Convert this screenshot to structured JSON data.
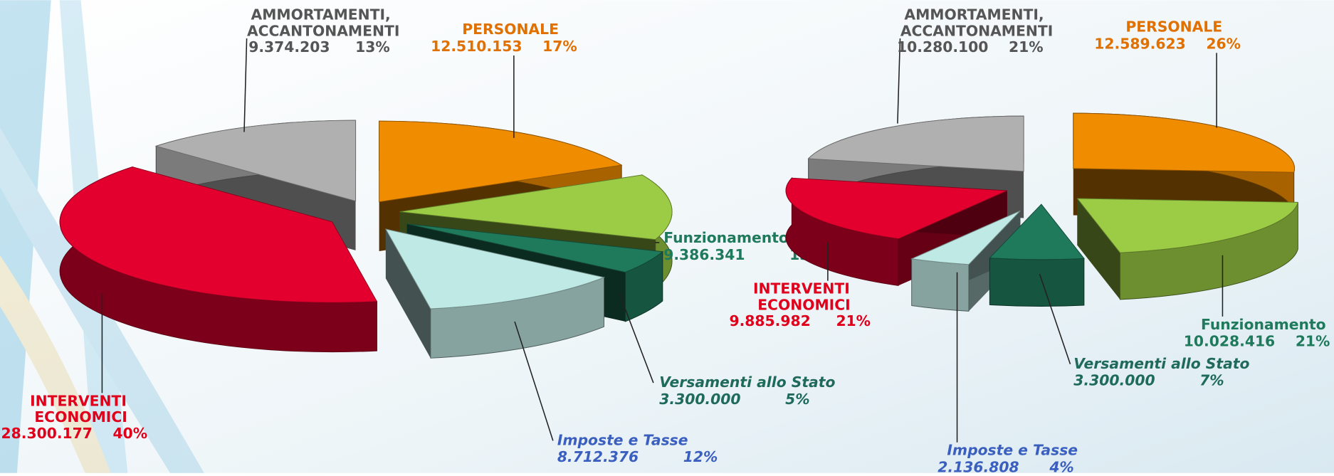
{
  "chart_data": [
    {
      "type": "pie3d",
      "categories": [
        "PERSONALE",
        "Funzionamento",
        "Versamenti allo Stato",
        "Imposte e Tasse",
        "INTERVENTI ECONOMICI",
        "AMMORTAMENTI, ACCANTONAMENTI"
      ],
      "values": [
        12510153,
        9386341,
        3300000,
        8712376,
        28300177,
        9374203
      ],
      "value_labels": [
        "12.510.153",
        "9.386.341",
        "3.300.000",
        "8.712.376",
        "28.300.177",
        "9.374.203"
      ],
      "percents": [
        17,
        13,
        5,
        12,
        40,
        13
      ],
      "percent_labels": [
        "17%",
        "13%",
        "5%",
        "12%",
        "40%",
        "13%"
      ],
      "colors": [
        "#f08c00",
        "#9ccc45",
        "#1f7a5c",
        "#bfe9e4",
        "#e3002f",
        "#b0b0b0"
      ]
    },
    {
      "type": "pie3d",
      "categories": [
        "PERSONALE",
        "Funzionamento",
        "Versamenti allo Stato",
        "Imposte e Tasse",
        "INTERVENTI ECONOMICI",
        "AMMORTAMENTI, ACCANTONAMENTI"
      ],
      "values": [
        12589623,
        10028416,
        3300000,
        2136808,
        9885982,
        10280100
      ],
      "value_labels": [
        "12.589.623",
        "10.028.416",
        "3.300.000",
        "2.136.808",
        "9.885.982",
        "10.280.100"
      ],
      "percents": [
        26,
        21,
        7,
        4,
        21,
        21
      ],
      "percent_labels": [
        "26%",
        "21%",
        "7%",
        "4%",
        "21%",
        "21%"
      ],
      "colors": [
        "#f08c00",
        "#9ccc45",
        "#1f7a5c",
        "#bfe9e4",
        "#e3002f",
        "#b0b0b0"
      ]
    }
  ]
}
